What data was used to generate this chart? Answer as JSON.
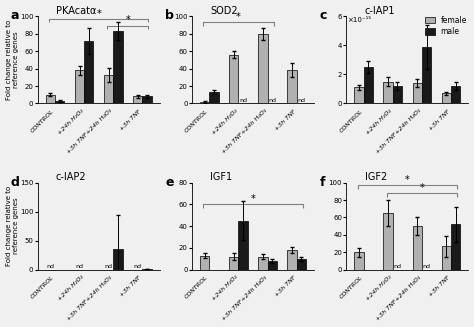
{
  "panels": {
    "a": {
      "title": "PKAcatα",
      "ylim": [
        0,
        100
      ],
      "yticks": [
        0,
        20,
        40,
        60,
        80,
        100
      ],
      "ylabel": "Fold change relative to\nreference genes",
      "female": [
        10,
        38,
        33,
        8
      ],
      "male": [
        3,
        72,
        83,
        8
      ],
      "female_err": [
        2,
        5,
        8,
        2
      ],
      "male_err": [
        1,
        15,
        10,
        2
      ],
      "nd_female": [
        false,
        false,
        false,
        false
      ],
      "nd_male": [
        false,
        false,
        false,
        false
      ],
      "sig_brackets": [
        [
          [
            0,
            3
          ],
          "*",
          97
        ],
        [
          [
            2,
            3
          ],
          "*",
          89
        ]
      ],
      "scale": null
    },
    "b": {
      "title": "SOD2",
      "ylim": [
        0,
        100
      ],
      "yticks": [
        0,
        20,
        40,
        60,
        80,
        100
      ],
      "ylabel": "",
      "female": [
        2,
        56,
        80,
        38
      ],
      "male": [
        13,
        0,
        0,
        0
      ],
      "female_err": [
        1,
        4,
        7,
        8
      ],
      "male_err": [
        2,
        0,
        0,
        0
      ],
      "nd_female": [
        false,
        false,
        false,
        false
      ],
      "nd_male": [
        false,
        true,
        true,
        true
      ],
      "sig_brackets": [
        [
          [
            0,
            2
          ],
          "*",
          93
        ]
      ],
      "scale": null
    },
    "c": {
      "title": "c-IAP1",
      "ylim": [
        0,
        6.0
      ],
      "yticks": [
        0,
        2.0,
        4.0,
        6.0
      ],
      "ylabel": "",
      "female": [
        1.1,
        1.5,
        1.4,
        0.7
      ],
      "male": [
        2.5,
        1.2,
        3.9,
        1.2
      ],
      "female_err": [
        0.2,
        0.3,
        0.3,
        0.1
      ],
      "male_err": [
        0.4,
        0.3,
        1.5,
        0.3
      ],
      "nd_female": [
        false,
        false,
        false,
        false
      ],
      "nd_male": [
        false,
        false,
        false,
        false
      ],
      "sig_brackets": [],
      "scale": "×10⁻¹⁵"
    },
    "d": {
      "title": "c-IAP2",
      "ylim": [
        0,
        150
      ],
      "yticks": [
        0,
        50,
        100,
        150
      ],
      "ylabel": "Fold change relative to\nreference genes",
      "female": [
        0,
        0,
        0,
        0
      ],
      "male": [
        0,
        0,
        35,
        1
      ],
      "female_err": [
        0,
        0,
        0,
        0
      ],
      "male_err": [
        0,
        0,
        60,
        0.5
      ],
      "nd_female": [
        true,
        true,
        true,
        true
      ],
      "nd_male": [
        false,
        false,
        false,
        false
      ],
      "sig_brackets": [],
      "scale": null
    },
    "e": {
      "title": "IGF1",
      "ylim": [
        0,
        80
      ],
      "yticks": [
        0,
        20,
        40,
        60,
        80
      ],
      "ylabel": "",
      "female": [
        13,
        12,
        12,
        18
      ],
      "male": [
        0,
        45,
        8,
        10
      ],
      "female_err": [
        2,
        3,
        2,
        3
      ],
      "male_err": [
        0,
        18,
        2,
        2
      ],
      "nd_female": [
        false,
        false,
        false,
        false
      ],
      "nd_male": [
        false,
        false,
        false,
        false
      ],
      "sig_brackets": [
        [
          [
            0,
            3
          ],
          "*",
          75
        ]
      ],
      "scale": null
    },
    "f": {
      "title": "IGF2",
      "ylim": [
        0,
        100
      ],
      "yticks": [
        0,
        20,
        40,
        60,
        80,
        100
      ],
      "ylabel": "",
      "female": [
        20,
        65,
        50,
        27
      ],
      "male": [
        0,
        0,
        0,
        52
      ],
      "female_err": [
        5,
        15,
        10,
        12
      ],
      "male_err": [
        0,
        0,
        0,
        20
      ],
      "nd_female": [
        false,
        false,
        false,
        false
      ],
      "nd_male": [
        false,
        true,
        true,
        false
      ],
      "sig_brackets": [
        [
          [
            0,
            3
          ],
          "*",
          97
        ],
        [
          [
            1,
            3
          ],
          "*",
          88
        ]
      ],
      "scale": null
    }
  },
  "categories": [
    "CONTROL",
    "+24h H₂O₂",
    "+3h TNF+24h H₂O₂",
    "+3h TNF"
  ],
  "female_color": "#b0b0b0",
  "male_color": "#1a1a1a",
  "bar_width": 0.32,
  "fig_bg": "#f0f0f0"
}
